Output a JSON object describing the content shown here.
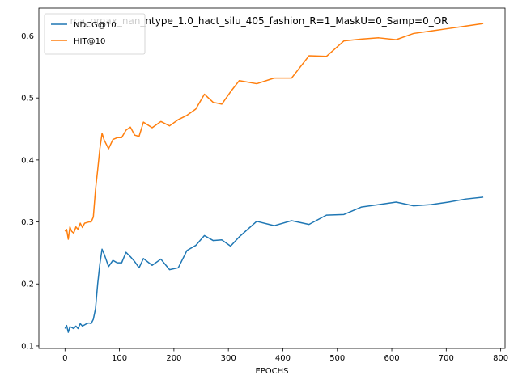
{
  "chart_data": {
    "type": "line",
    "title": "rca_nmax_nan_ntype_1.0_hact_silu_405_fashion_R=1_MaskU=0_Samp=0_OR",
    "xlabel": "EPOCHS",
    "ylabel": "",
    "xlim": [
      -48,
      808
    ],
    "ylim": [
      0.096,
      0.645
    ],
    "xticks": [
      0,
      100,
      200,
      300,
      400,
      500,
      600,
      700,
      800
    ],
    "yticks": [
      0.1,
      0.2,
      0.3,
      0.4,
      0.5,
      0.6
    ],
    "legend_position": "top-left",
    "grid": false,
    "series": [
      {
        "name": "NDCG@10",
        "color": "#1f77b4",
        "x": [
          0,
          3,
          6,
          9,
          12,
          16,
          20,
          24,
          28,
          32,
          36,
          40,
          44,
          48,
          52,
          56,
          60,
          64,
          68,
          72,
          80,
          88,
          96,
          104,
          112,
          120,
          128,
          136,
          144,
          160,
          176,
          192,
          208,
          224,
          240,
          256,
          272,
          288,
          304,
          320,
          352,
          384,
          416,
          448,
          480,
          512,
          544,
          576,
          608,
          640,
          672,
          704,
          736,
          768
        ],
        "y": [
          0.128,
          0.133,
          0.122,
          0.131,
          0.13,
          0.128,
          0.132,
          0.128,
          0.136,
          0.132,
          0.134,
          0.136,
          0.137,
          0.136,
          0.143,
          0.16,
          0.2,
          0.232,
          0.256,
          0.248,
          0.228,
          0.238,
          0.234,
          0.234,
          0.251,
          0.244,
          0.236,
          0.226,
          0.241,
          0.23,
          0.24,
          0.223,
          0.226,
          0.254,
          0.262,
          0.278,
          0.27,
          0.271,
          0.261,
          0.276,
          0.301,
          0.294,
          0.302,
          0.296,
          0.311,
          0.312,
          0.324,
          0.328,
          0.332,
          0.326,
          0.328,
          0.332,
          0.337,
          0.34
        ]
      },
      {
        "name": "HIT@10",
        "color": "#ff7f0e",
        "x": [
          0,
          3,
          6,
          9,
          12,
          16,
          20,
          24,
          28,
          32,
          36,
          40,
          44,
          48,
          52,
          56,
          60,
          64,
          68,
          72,
          80,
          88,
          96,
          104,
          112,
          120,
          128,
          136,
          144,
          160,
          176,
          192,
          208,
          224,
          240,
          256,
          272,
          288,
          304,
          320,
          352,
          384,
          416,
          448,
          480,
          512,
          544,
          576,
          608,
          640,
          672,
          704,
          736,
          768
        ],
        "y": [
          0.285,
          0.288,
          0.272,
          0.292,
          0.285,
          0.282,
          0.292,
          0.288,
          0.298,
          0.291,
          0.298,
          0.299,
          0.3,
          0.3,
          0.308,
          0.352,
          0.384,
          0.418,
          0.443,
          0.432,
          0.418,
          0.433,
          0.436,
          0.436,
          0.448,
          0.453,
          0.44,
          0.438,
          0.461,
          0.452,
          0.462,
          0.455,
          0.465,
          0.472,
          0.482,
          0.506,
          0.493,
          0.49,
          0.51,
          0.528,
          0.523,
          0.532,
          0.532,
          0.568,
          0.567,
          0.592,
          0.595,
          0.597,
          0.594,
          0.604,
          0.608,
          0.612,
          0.616,
          0.62
        ]
      }
    ]
  }
}
